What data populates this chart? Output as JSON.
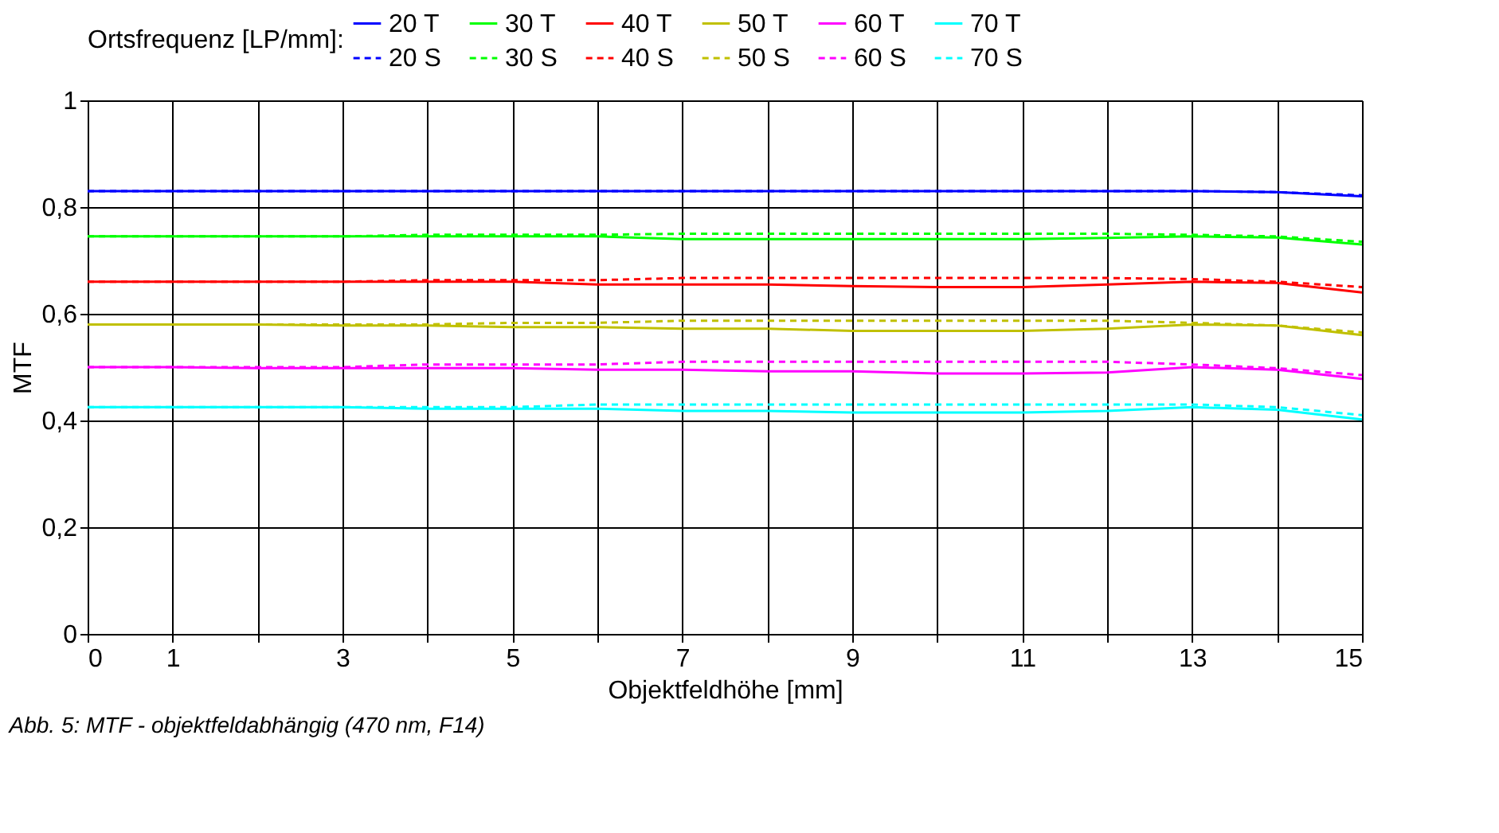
{
  "chart_data": {
    "type": "line",
    "xlabel": "Objektfeldhöhe [mm]",
    "ylabel": "MTF",
    "legend_title": "Ortsfrequenz [LP/mm]:",
    "x": [
      0,
      1,
      2,
      3,
      4,
      5,
      6,
      7,
      8,
      9,
      10,
      11,
      12,
      13,
      14,
      15
    ],
    "xlim": [
      0,
      15
    ],
    "xticks": [
      0,
      1,
      {
        "value": 2,
        "label": null
      },
      3,
      {
        "value": 4,
        "label": null
      },
      5,
      {
        "value": 6,
        "label": null
      },
      7,
      {
        "value": 8,
        "label": null
      },
      9,
      {
        "value": 10,
        "label": null
      },
      11,
      {
        "value": 12,
        "label": null
      },
      13,
      {
        "value": 14,
        "label": null
      },
      15
    ],
    "ylim": [
      0,
      1
    ],
    "yticks": [
      {
        "value": 0,
        "label": "0"
      },
      {
        "value": 0.2,
        "label": "0,2"
      },
      {
        "value": 0.4,
        "label": "0,4"
      },
      {
        "value": 0.6,
        "label": "0,6"
      },
      {
        "value": 0.8,
        "label": "0,8"
      },
      {
        "value": 1,
        "label": "1"
      }
    ],
    "grid": true,
    "legend": "top",
    "marker": "none",
    "series": [
      {
        "name": "20 T",
        "color": "#0000ff",
        "line_style": "solid",
        "values": [
          0.83,
          0.83,
          0.83,
          0.83,
          0.83,
          0.83,
          0.83,
          0.83,
          0.83,
          0.83,
          0.83,
          0.83,
          0.83,
          0.83,
          0.828,
          0.82
        ]
      },
      {
        "name": "30 T",
        "color": "#00ff00",
        "line_style": "solid",
        "values": [
          0.745,
          0.745,
          0.745,
          0.745,
          0.745,
          0.745,
          0.745,
          0.74,
          0.74,
          0.74,
          0.74,
          0.74,
          0.742,
          0.745,
          0.743,
          0.73
        ]
      },
      {
        "name": "40 T",
        "color": "#ff0000",
        "line_style": "solid",
        "values": [
          0.66,
          0.66,
          0.66,
          0.66,
          0.66,
          0.66,
          0.655,
          0.655,
          0.655,
          0.652,
          0.65,
          0.65,
          0.655,
          0.66,
          0.658,
          0.64
        ]
      },
      {
        "name": "50 T",
        "color": "#c0c000",
        "line_style": "solid",
        "values": [
          0.58,
          0.58,
          0.58,
          0.578,
          0.578,
          0.575,
          0.575,
          0.572,
          0.572,
          0.568,
          0.568,
          0.568,
          0.572,
          0.58,
          0.578,
          0.56
        ]
      },
      {
        "name": "60 T",
        "color": "#ff00ff",
        "line_style": "solid",
        "values": [
          0.5,
          0.5,
          0.498,
          0.498,
          0.498,
          0.498,
          0.495,
          0.495,
          0.492,
          0.492,
          0.488,
          0.488,
          0.49,
          0.5,
          0.495,
          0.478
        ]
      },
      {
        "name": "70 T",
        "color": "#00ffff",
        "line_style": "solid",
        "values": [
          0.425,
          0.425,
          0.425,
          0.425,
          0.422,
          0.422,
          0.422,
          0.418,
          0.418,
          0.415,
          0.415,
          0.415,
          0.418,
          0.425,
          0.42,
          0.402
        ]
      },
      {
        "name": "20 S",
        "color": "#0000ff",
        "line_style": "dashed",
        "values": [
          0.83,
          0.83,
          0.83,
          0.83,
          0.83,
          0.83,
          0.83,
          0.83,
          0.83,
          0.83,
          0.83,
          0.83,
          0.83,
          0.83,
          0.828,
          0.822
        ]
      },
      {
        "name": "30 S",
        "color": "#00ff00",
        "line_style": "dashed",
        "values": [
          0.745,
          0.745,
          0.745,
          0.745,
          0.748,
          0.748,
          0.748,
          0.75,
          0.75,
          0.75,
          0.75,
          0.75,
          0.75,
          0.748,
          0.745,
          0.735
        ]
      },
      {
        "name": "40 S",
        "color": "#ff0000",
        "line_style": "dashed",
        "values": [
          0.66,
          0.66,
          0.66,
          0.66,
          0.663,
          0.663,
          0.663,
          0.667,
          0.667,
          0.667,
          0.667,
          0.667,
          0.667,
          0.665,
          0.66,
          0.65
        ]
      },
      {
        "name": "50 S",
        "color": "#c0c000",
        "line_style": "dashed",
        "values": [
          0.58,
          0.58,
          0.58,
          0.58,
          0.58,
          0.583,
          0.583,
          0.587,
          0.587,
          0.587,
          0.587,
          0.587,
          0.587,
          0.583,
          0.578,
          0.565
        ]
      },
      {
        "name": "60 S",
        "color": "#ff00ff",
        "line_style": "dashed",
        "values": [
          0.5,
          0.5,
          0.5,
          0.5,
          0.505,
          0.505,
          0.505,
          0.51,
          0.51,
          0.51,
          0.51,
          0.51,
          0.51,
          0.505,
          0.498,
          0.485
        ]
      },
      {
        "name": "70 S",
        "color": "#00ffff",
        "line_style": "dashed",
        "values": [
          0.425,
          0.425,
          0.425,
          0.425,
          0.425,
          0.425,
          0.43,
          0.43,
          0.43,
          0.43,
          0.43,
          0.43,
          0.43,
          0.43,
          0.425,
          0.41
        ]
      }
    ],
    "annotations": [
      "Abb. 5: MTF - objektfeldabhängig (470 nm, F14)"
    ]
  }
}
